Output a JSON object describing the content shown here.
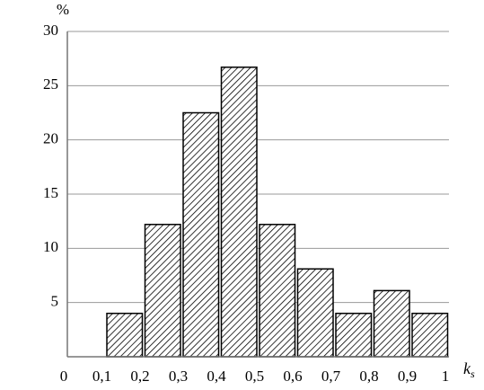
{
  "chart_data": {
    "type": "histogram",
    "y_label": "%",
    "x_label": {
      "main": "k",
      "sub": "s"
    },
    "bins": [
      0,
      0.1,
      0.2,
      0.3,
      0.4,
      0.5,
      0.6,
      0.7,
      0.8,
      0.9,
      1
    ],
    "values": [
      0,
      4,
      12.2,
      22.5,
      26.7,
      12.2,
      8.1,
      4,
      6.1,
      4
    ],
    "color": "#000000",
    "hatch": true,
    "xlim": [
      0,
      1
    ],
    "xticks": [
      0,
      {
        "value": 0.1,
        "label": "0,1"
      },
      {
        "value": 0.2,
        "label": "0,2"
      },
      {
        "value": 0.3,
        "label": "0,3"
      },
      {
        "value": 0.4,
        "label": "0,4"
      },
      {
        "value": 0.5,
        "label": "0,5"
      },
      {
        "value": 0.6,
        "label": "0,6"
      },
      {
        "value": 0.7,
        "label": "0,7"
      },
      {
        "value": 0.8,
        "label": "0,8"
      },
      {
        "value": 0.9,
        "label": "0,9"
      },
      1
    ],
    "ylim": [
      0,
      30
    ],
    "yticks": [
      5,
      10,
      15,
      20,
      25,
      30
    ],
    "grid": true
  }
}
